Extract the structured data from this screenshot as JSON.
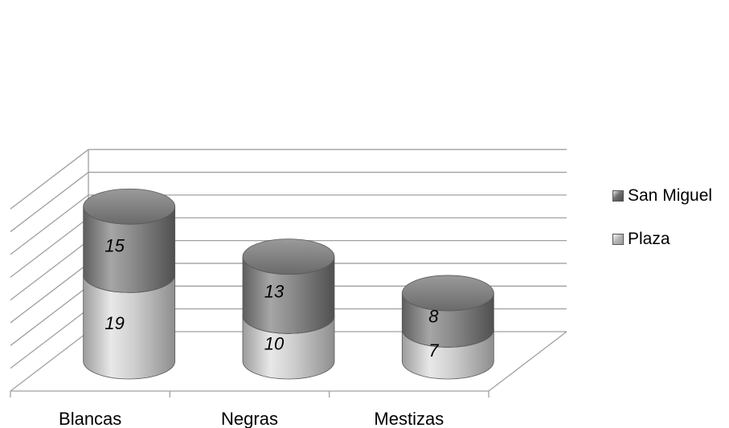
{
  "chart_data": {
    "type": "bar",
    "subtype": "stacked-3d-cylinder",
    "title": "",
    "xlabel": "",
    "ylabel": "",
    "categories": [
      "Blancas",
      "Negras",
      "Mestizas"
    ],
    "series": [
      {
        "name": "Plaza",
        "values": [
          19,
          10,
          7
        ],
        "color": "#b8b8b8"
      },
      {
        "name": "San Miguel",
        "values": [
          15,
          13,
          8
        ],
        "color": "#808080"
      }
    ],
    "ylim": [
      0,
      40
    ],
    "grid": true,
    "legend_position": "right"
  }
}
